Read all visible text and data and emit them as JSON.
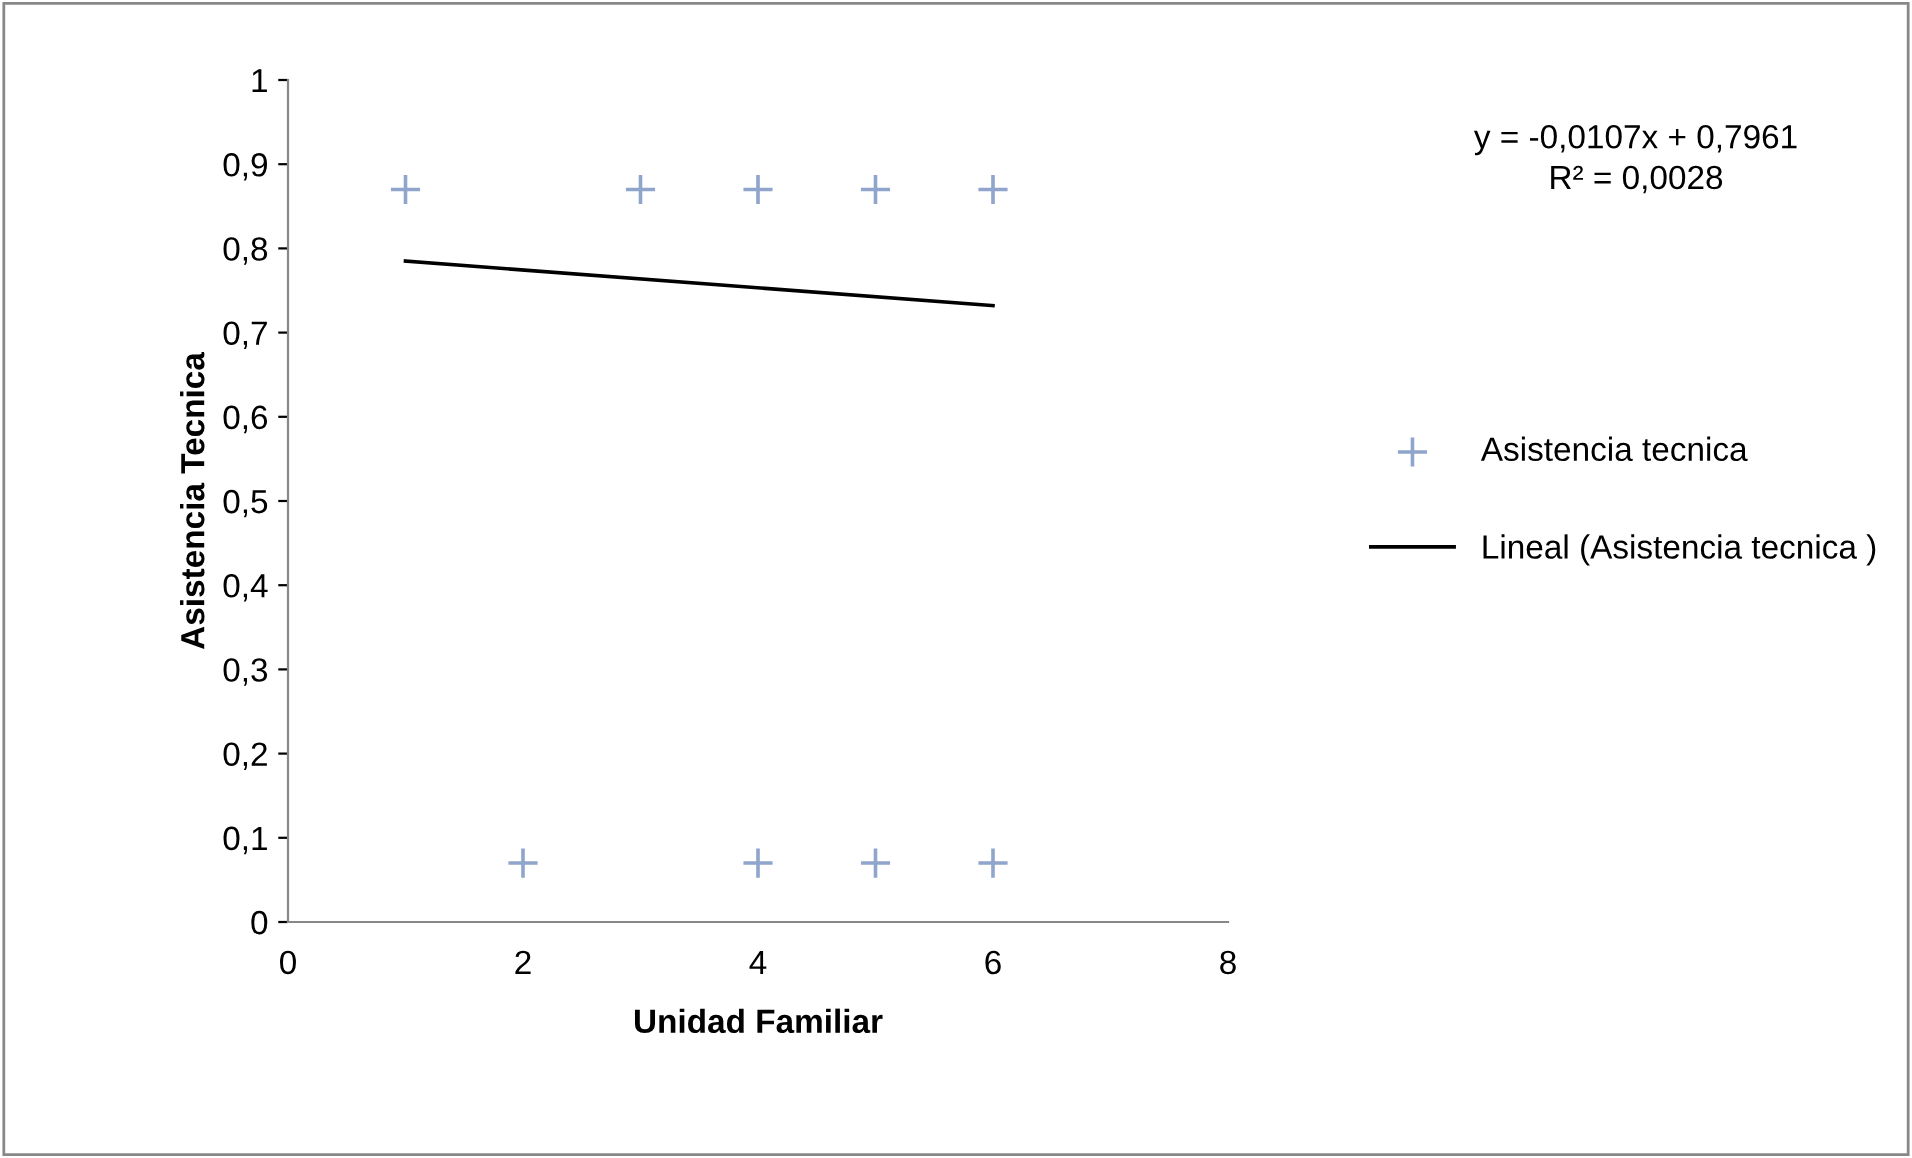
{
  "chart_data": {
    "type": "scatter",
    "xlabel": "Unidad Familiar",
    "ylabel": "Asistencia Tecnica",
    "series": [
      {
        "name": "Asistencia tecnica",
        "color": "#8fa5cb",
        "marker": "cross",
        "x": [
          1,
          2,
          3,
          4,
          4,
          5,
          5,
          6,
          6
        ],
        "values": [
          0.87,
          0.07,
          0.87,
          0.87,
          0.07,
          0.87,
          0.07,
          0.87,
          0.07
        ]
      },
      {
        "name": "Lineal (Asistencia tecnica )",
        "type": "line",
        "color": "#000000",
        "marker": "none",
        "line_style": "solid",
        "x": [
          1,
          6
        ],
        "values": [
          0.785,
          0.732
        ]
      }
    ],
    "xlim": [
      0,
      8
    ],
    "xticks": [
      0,
      2,
      4,
      6,
      8
    ],
    "ylim": [
      0,
      1
    ],
    "yticks": [
      0,
      {
        "value": 0.1,
        "label": "0,1"
      },
      {
        "value": 0.2,
        "label": "0,2"
      },
      {
        "value": 0.3,
        "label": "0,3"
      },
      {
        "value": 0.4,
        "label": "0,4"
      },
      {
        "value": 0.5,
        "label": "0,5"
      },
      {
        "value": 0.6,
        "label": "0,6"
      },
      {
        "value": 0.7,
        "label": "0,7"
      },
      {
        "value": 0.8,
        "label": "0,8"
      },
      {
        "value": 0.9,
        "label": "0,9"
      },
      1
    ],
    "annotations": [
      "y = -0,0107x + 0,7961\nR² = 0,0028"
    ],
    "grid": false,
    "legend": "right"
  }
}
